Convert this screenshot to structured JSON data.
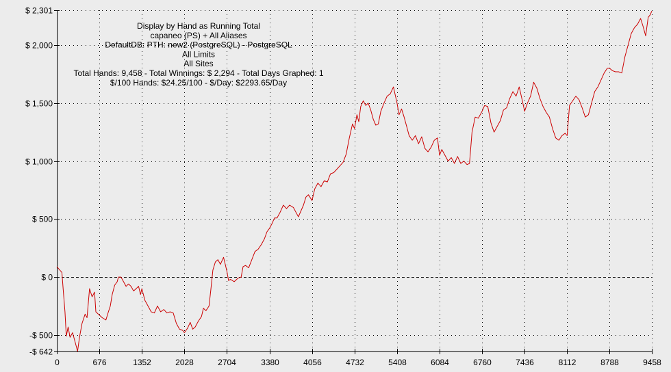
{
  "chart_data": {
    "type": "line",
    "title_lines": [
      "Display by Hand as Running Total",
      "capaneo (PS) + All Aliases",
      "DefaultDB: PTH: new2 (PostgreSQL) - PostgreSQL",
      "All Limits",
      "All Sites",
      "Total Hands: 9,458 - Total Winnings: $ 2,294 - Total Days Graphed: 1",
      "$/100 Hands: $24.25/100 - $/Day: $2293.65/Day"
    ],
    "xlim": [
      0,
      9458
    ],
    "ylim": [
      -642,
      2301
    ],
    "x_ticks": [
      0,
      676,
      1352,
      2028,
      2704,
      3380,
      4056,
      4732,
      5408,
      6084,
      6760,
      7436,
      8112,
      8788,
      9458
    ],
    "x_tick_labels": [
      "0",
      "676",
      "1352",
      "2028",
      "2704",
      "3380",
      "4056",
      "4732",
      "5408",
      "6084",
      "6760",
      "7436",
      "8112",
      "8788",
      "9458"
    ],
    "y_ticks": [
      -642,
      -500,
      0,
      500,
      1000,
      1500,
      2000,
      2301
    ],
    "y_tick_labels": [
      "-$ 642",
      "-$ 500",
      "$ 0",
      "$ 500",
      "$ 1,000",
      "$ 1,500",
      "$ 2,000",
      "$ 2,301"
    ],
    "grid": true,
    "zero_line": true,
    "line_color": "#cc0000",
    "series": [
      {
        "points": [
          [
            0,
            90
          ],
          [
            80,
            40
          ],
          [
            100,
            -100
          ],
          [
            130,
            -300
          ],
          [
            150,
            -510
          ],
          [
            180,
            -430
          ],
          [
            210,
            -520
          ],
          [
            250,
            -480
          ],
          [
            300,
            -580
          ],
          [
            330,
            -640
          ],
          [
            360,
            -520
          ],
          [
            400,
            -400
          ],
          [
            450,
            -320
          ],
          [
            480,
            -350
          ],
          [
            520,
            -100
          ],
          [
            560,
            -170
          ],
          [
            600,
            -130
          ],
          [
            620,
            -300
          ],
          [
            660,
            -320
          ],
          [
            720,
            -350
          ],
          [
            780,
            -370
          ],
          [
            820,
            -300
          ],
          [
            850,
            -250
          ],
          [
            880,
            -150
          ],
          [
            920,
            -70
          ],
          [
            960,
            -40
          ],
          [
            980,
            0
          ],
          [
            1020,
            0
          ],
          [
            1060,
            -40
          ],
          [
            1100,
            -80
          ],
          [
            1140,
            -60
          ],
          [
            1180,
            -80
          ],
          [
            1220,
            -120
          ],
          [
            1260,
            -100
          ],
          [
            1300,
            -80
          ],
          [
            1330,
            -150
          ],
          [
            1352,
            -100
          ],
          [
            1400,
            -200
          ],
          [
            1450,
            -250
          ],
          [
            1500,
            -300
          ],
          [
            1550,
            -310
          ],
          [
            1600,
            -250
          ],
          [
            1650,
            -300
          ],
          [
            1700,
            -280
          ],
          [
            1750,
            -310
          ],
          [
            1800,
            -300
          ],
          [
            1850,
            -310
          ],
          [
            1900,
            -400
          ],
          [
            1950,
            -450
          ],
          [
            2000,
            -460
          ],
          [
            2028,
            -480
          ],
          [
            2080,
            -440
          ],
          [
            2120,
            -390
          ],
          [
            2160,
            -450
          ],
          [
            2200,
            -430
          ],
          [
            2250,
            -380
          ],
          [
            2300,
            -340
          ],
          [
            2330,
            -270
          ],
          [
            2370,
            -290
          ],
          [
            2420,
            -250
          ],
          [
            2450,
            -100
          ],
          [
            2480,
            60
          ],
          [
            2520,
            130
          ],
          [
            2560,
            150
          ],
          [
            2600,
            110
          ],
          [
            2650,
            170
          ],
          [
            2704,
            50
          ],
          [
            2730,
            -30
          ],
          [
            2760,
            -20
          ],
          [
            2820,
            -40
          ],
          [
            2880,
            -10
          ],
          [
            2930,
            0
          ],
          [
            2960,
            90
          ],
          [
            3000,
            100
          ],
          [
            3050,
            80
          ],
          [
            3100,
            150
          ],
          [
            3150,
            220
          ],
          [
            3200,
            240
          ],
          [
            3250,
            280
          ],
          [
            3300,
            330
          ],
          [
            3340,
            390
          ],
          [
            3380,
            420
          ],
          [
            3420,
            460
          ],
          [
            3460,
            510
          ],
          [
            3500,
            510
          ],
          [
            3550,
            560
          ],
          [
            3600,
            620
          ],
          [
            3650,
            590
          ],
          [
            3700,
            620
          ],
          [
            3760,
            600
          ],
          [
            3800,
            560
          ],
          [
            3840,
            520
          ],
          [
            3880,
            570
          ],
          [
            3920,
            620
          ],
          [
            3960,
            690
          ],
          [
            4000,
            710
          ],
          [
            4056,
            660
          ],
          [
            4100,
            760
          ],
          [
            4150,
            810
          ],
          [
            4200,
            780
          ],
          [
            4250,
            830
          ],
          [
            4300,
            820
          ],
          [
            4350,
            890
          ],
          [
            4400,
            900
          ],
          [
            4450,
            930
          ],
          [
            4500,
            960
          ],
          [
            4550,
            990
          ],
          [
            4600,
            1060
          ],
          [
            4650,
            1200
          ],
          [
            4700,
            1320
          ],
          [
            4732,
            1280
          ],
          [
            4770,
            1400
          ],
          [
            4800,
            1340
          ],
          [
            4830,
            1470
          ],
          [
            4870,
            1520
          ],
          [
            4910,
            1480
          ],
          [
            4950,
            1500
          ],
          [
            4990,
            1440
          ],
          [
            5030,
            1360
          ],
          [
            5070,
            1310
          ],
          [
            5110,
            1320
          ],
          [
            5150,
            1430
          ],
          [
            5200,
            1500
          ],
          [
            5250,
            1560
          ],
          [
            5300,
            1580
          ],
          [
            5350,
            1640
          ],
          [
            5408,
            1500
          ],
          [
            5440,
            1400
          ],
          [
            5480,
            1450
          ],
          [
            5520,
            1380
          ],
          [
            5560,
            1300
          ],
          [
            5600,
            1220
          ],
          [
            5650,
            1180
          ],
          [
            5700,
            1220
          ],
          [
            5750,
            1150
          ],
          [
            5800,
            1210
          ],
          [
            5850,
            1110
          ],
          [
            5900,
            1080
          ],
          [
            5950,
            1120
          ],
          [
            6000,
            1180
          ],
          [
            6050,
            1200
          ],
          [
            6084,
            1050
          ],
          [
            6120,
            1100
          ],
          [
            6170,
            1050
          ],
          [
            6220,
            1000
          ],
          [
            6270,
            1030
          ],
          [
            6320,
            980
          ],
          [
            6370,
            1040
          ],
          [
            6420,
            980
          ],
          [
            6470,
            1000
          ],
          [
            6520,
            970
          ],
          [
            6560,
            980
          ],
          [
            6600,
            1250
          ],
          [
            6650,
            1380
          ],
          [
            6700,
            1370
          ],
          [
            6760,
            1430
          ],
          [
            6800,
            1480
          ],
          [
            6850,
            1470
          ],
          [
            6900,
            1330
          ],
          [
            6950,
            1250
          ],
          [
            7000,
            1300
          ],
          [
            7050,
            1350
          ],
          [
            7100,
            1440
          ],
          [
            7150,
            1460
          ],
          [
            7200,
            1540
          ],
          [
            7250,
            1600
          ],
          [
            7300,
            1560
          ],
          [
            7350,
            1640
          ],
          [
            7400,
            1520
          ],
          [
            7436,
            1430
          ],
          [
            7480,
            1500
          ],
          [
            7530,
            1560
          ],
          [
            7580,
            1680
          ],
          [
            7630,
            1630
          ],
          [
            7680,
            1540
          ],
          [
            7730,
            1470
          ],
          [
            7780,
            1420
          ],
          [
            7830,
            1380
          ],
          [
            7880,
            1280
          ],
          [
            7930,
            1200
          ],
          [
            7980,
            1180
          ],
          [
            8030,
            1220
          ],
          [
            8080,
            1240
          ],
          [
            8112,
            1220
          ],
          [
            8150,
            1480
          ],
          [
            8200,
            1520
          ],
          [
            8250,
            1560
          ],
          [
            8300,
            1530
          ],
          [
            8350,
            1460
          ],
          [
            8400,
            1380
          ],
          [
            8450,
            1400
          ],
          [
            8500,
            1500
          ],
          [
            8550,
            1600
          ],
          [
            8600,
            1640
          ],
          [
            8650,
            1700
          ],
          [
            8700,
            1760
          ],
          [
            8750,
            1800
          ],
          [
            8788,
            1800
          ],
          [
            8830,
            1780
          ],
          [
            8880,
            1770
          ],
          [
            8930,
            1770
          ],
          [
            8980,
            1760
          ],
          [
            9030,
            1900
          ],
          [
            9080,
            2000
          ],
          [
            9130,
            2100
          ],
          [
            9180,
            2150
          ],
          [
            9230,
            2180
          ],
          [
            9280,
            2230
          ],
          [
            9320,
            2160
          ],
          [
            9360,
            2080
          ],
          [
            9400,
            2240
          ],
          [
            9430,
            2260
          ],
          [
            9458,
            2294
          ]
        ]
      }
    ]
  }
}
